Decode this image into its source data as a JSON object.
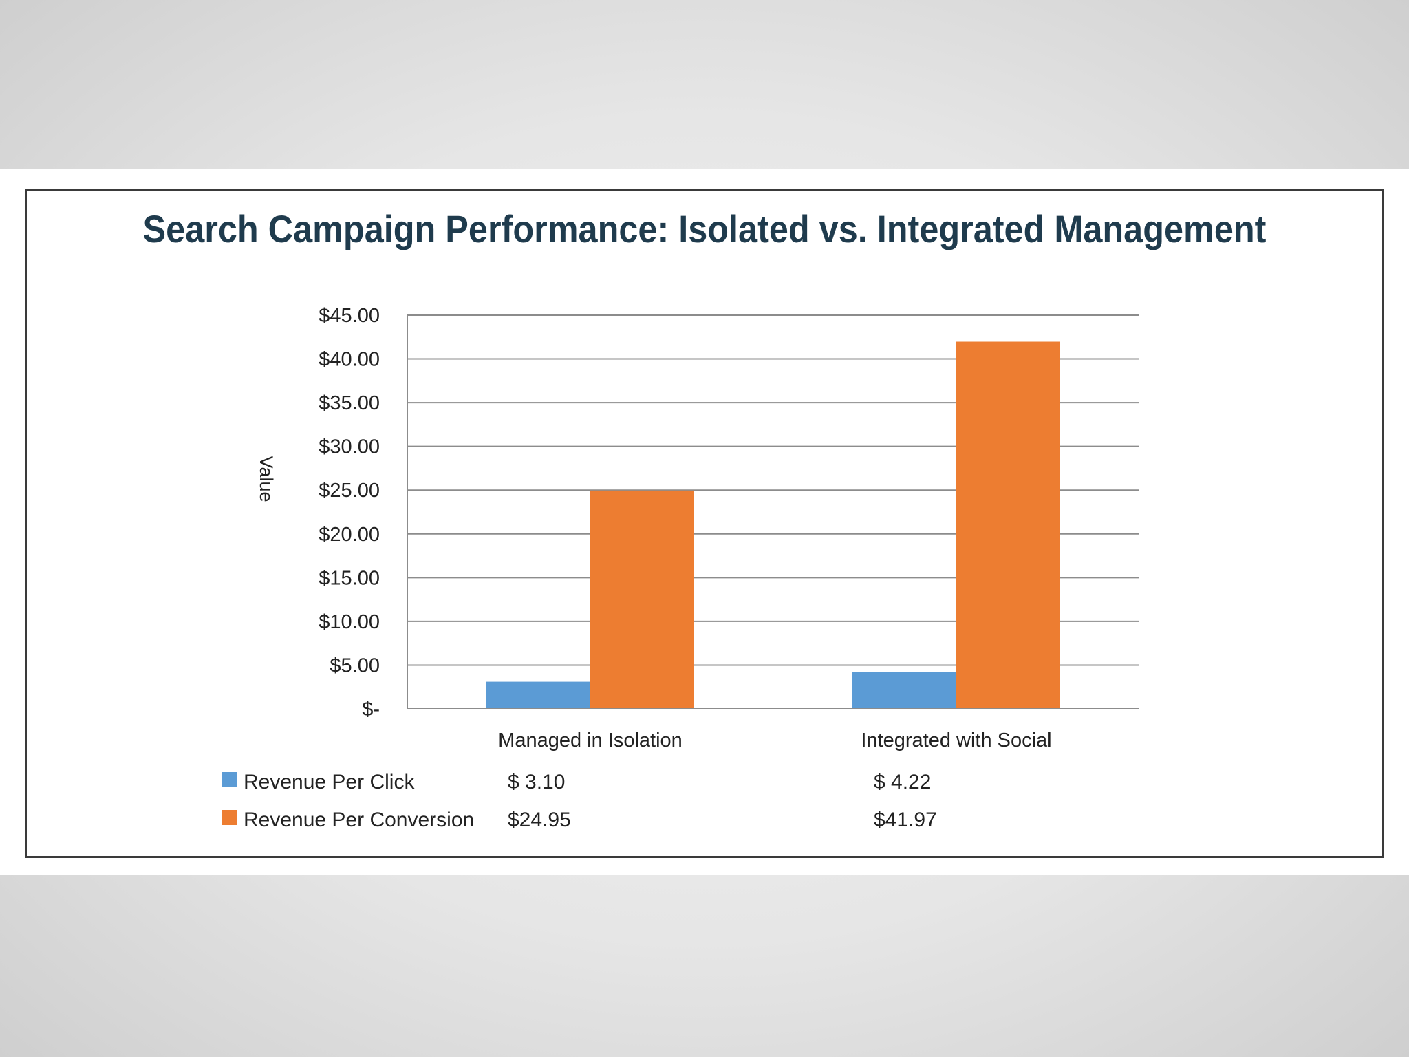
{
  "chart_data": {
    "type": "bar",
    "title": "Search Campaign Performance: Isolated vs. Integrated Management",
    "ylabel": "Value",
    "xlabel": "",
    "categories": [
      "Managed in Isolation",
      "Integrated with Social"
    ],
    "series": [
      {
        "name": "Revenue Per Click",
        "values": [
          3.1,
          4.22
        ],
        "color": "#5b9bd5",
        "labels": [
          "$ 3.10",
          "$ 4.22"
        ]
      },
      {
        "name": "Revenue Per Conversion",
        "values": [
          24.95,
          41.97
        ],
        "color": "#ed7d31",
        "labels": [
          "$24.95",
          "$41.97"
        ]
      }
    ],
    "ylim": [
      0,
      45
    ],
    "yticks": [
      {
        "value": 0,
        "label": "$-"
      },
      {
        "value": 5,
        "label": "$5.00"
      },
      {
        "value": 10,
        "label": "$10.00"
      },
      {
        "value": 15,
        "label": "$15.00"
      },
      {
        "value": 20,
        "label": "$20.00"
      },
      {
        "value": 25,
        "label": "$25.00"
      },
      {
        "value": 30,
        "label": "$30.00"
      },
      {
        "value": 35,
        "label": "$35.00"
      },
      {
        "value": 40,
        "label": "$40.00"
      },
      {
        "value": 45,
        "label": "$45.00"
      }
    ],
    "grid": true,
    "legend": "data-table-below"
  }
}
